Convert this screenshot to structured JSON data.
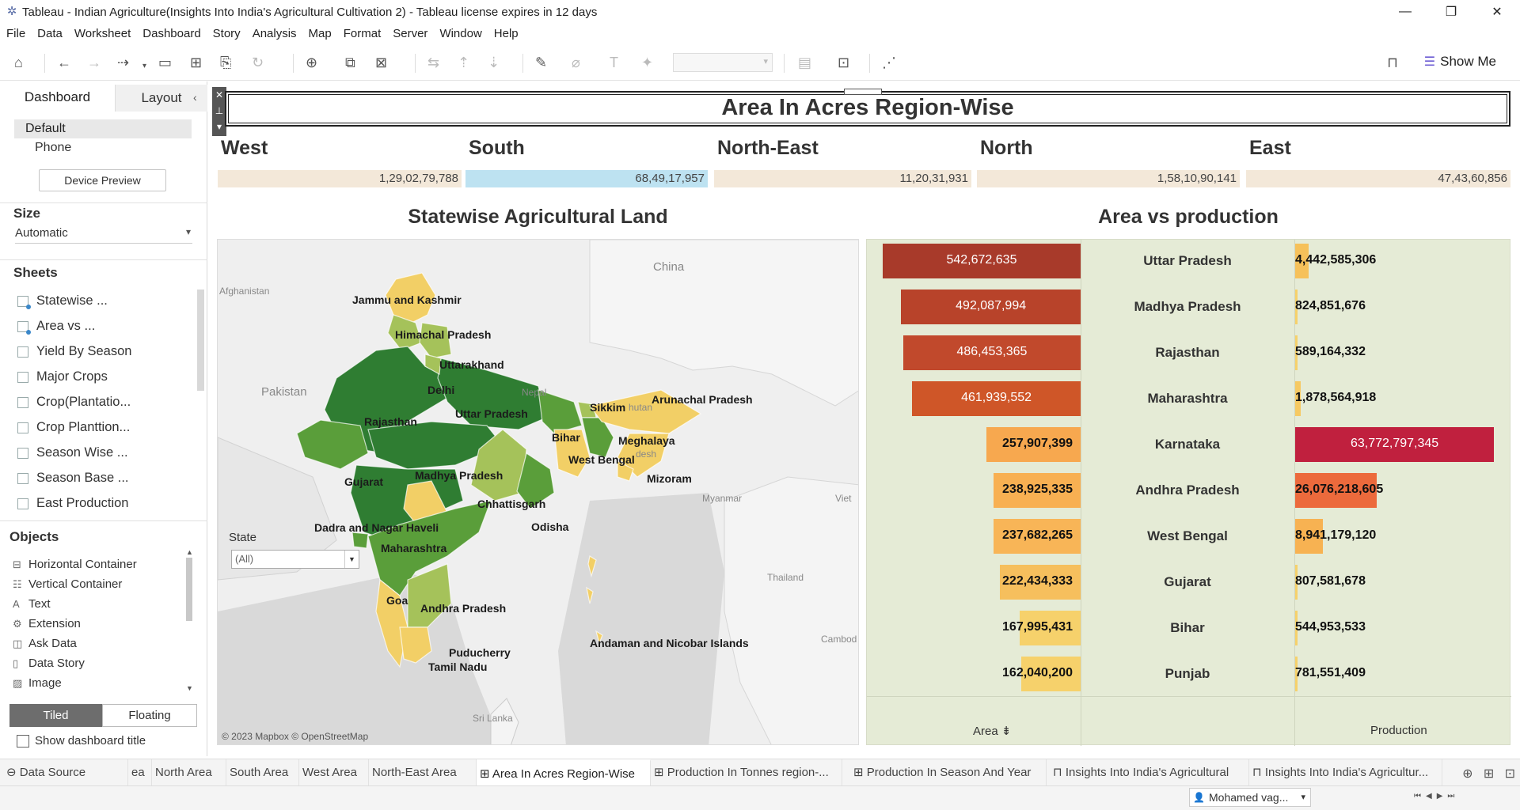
{
  "window": {
    "title": "Tableau - Indian Agriculture(Insights Into India's Agricultural Cultivation 2) - Tableau license expires in 12 days"
  },
  "menu": [
    "File",
    "Data",
    "Worksheet",
    "Dashboard",
    "Story",
    "Analysis",
    "Map",
    "Format",
    "Server",
    "Window",
    "Help"
  ],
  "toolbar": {
    "show_me": "Show Me"
  },
  "left_pane": {
    "tab_dashboard": "Dashboard",
    "tab_layout": "Layout",
    "device_default": "Default",
    "device_phone": "Phone",
    "device_preview": "Device Preview",
    "size_heading": "Size",
    "size_value": "Automatic",
    "sheets_heading": "Sheets",
    "sheets": [
      "Statewise ...",
      "Area vs ...",
      "Yield By Season",
      "Major Crops",
      "Crop(Plantatio...",
      "Crop Planttion...",
      "Season Wise ...",
      "Season Base ...",
      "East Production"
    ],
    "objects_heading": "Objects",
    "objects": [
      "Horizontal Container",
      "Vertical Container",
      "Text",
      "Extension",
      "Ask Data",
      "Data Story",
      "Image"
    ],
    "tiled": "Tiled",
    "floating": "Floating",
    "show_title": "Show dashboard title"
  },
  "dashboard": {
    "title": "Area In Acres Region-Wise",
    "regions": [
      {
        "name": "West",
        "value": "1,29,02,79,788"
      },
      {
        "name": "South",
        "value": "68,49,17,957"
      },
      {
        "name": "North-East",
        "value": "11,20,31,931"
      },
      {
        "name": "North",
        "value": "1,58,10,90,141"
      },
      {
        "name": "East",
        "value": "47,43,60,856"
      }
    ],
    "map_title": "Statewise Agricultural Land",
    "chart_title": "Area vs production",
    "state_filter_label": "State",
    "state_filter_value": "(All)",
    "map_attribution": "© 2023 Mapbox © OpenStreetMap",
    "map_labels": {
      "jk": "Jammu and Kashmir",
      "hp": "Himachal Pradesh",
      "uk": "Uttarakhand",
      "dl": "Delhi",
      "rj": "Rajasthan",
      "up": "Uttar Pradesh",
      "bh": "Bihar",
      "sk": "Sikkim",
      "ar": "Arunachal Pradesh",
      "ml": "Meghalaya",
      "wb": "West Bengal",
      "mz": "Mizoram",
      "gj": "Gujarat",
      "mp": "Madhya Pradesh",
      "cg": "Chhattisgarh",
      "od": "Odisha",
      "dn": "Dadra and Nagar Haveli",
      "mh": "Maharashtra",
      "ga": "Goa",
      "ap": "Andhra Pradesh",
      "py": "Puducherry",
      "tn": "Tamil Nadu",
      "an": "Andaman and Nicobar Islands",
      "china": "China",
      "afg": "Afghanistan",
      "pak": "Pakistan",
      "nepal": "Nepal",
      "myanmar": "Myanmar",
      "thailand": "Thailand",
      "srilanka": "Sri Lanka",
      "viet": "Viet",
      "camb": "Cambod",
      "bhutan": "hutan",
      "bangla": "desh"
    }
  },
  "chart_data": {
    "type": "bar",
    "title": "Area vs production",
    "categories": [
      "Uttar Pradesh",
      "Madhya Pradesh",
      "Rajasthan",
      "Maharashtra",
      "Karnataka",
      "Andhra Pradesh",
      "West Bengal",
      "Gujarat",
      "Bihar",
      "Punjab"
    ],
    "series": [
      {
        "name": "Area",
        "values": [
          542672635,
          492087994,
          486453365,
          461939552,
          257907399,
          238925335,
          237682265,
          222434333,
          167995431,
          162040200
        ],
        "labels": [
          "542,672,635",
          "492,087,994",
          "486,453,365",
          "461,939,552",
          "257,907,399",
          "238,925,335",
          "237,682,265",
          "222,434,333",
          "167,995,431",
          "162,040,200"
        ]
      },
      {
        "name": "Production",
        "values": [
          4442585306,
          824851676,
          589164332,
          1878564918,
          63772797345,
          26076218605,
          8941179120,
          807581678,
          544953533,
          781551409
        ],
        "labels": [
          "4,442,585,306",
          "824,851,676",
          "589,164,332",
          "1,878,564,918",
          "63,772,797,345",
          "26,076,218,605",
          "8,941,179,120",
          "807,581,678",
          "544,953,533",
          "781,551,409"
        ]
      }
    ],
    "xlabel_area": "Area",
    "xlabel_production": "Production"
  },
  "colors": {
    "map_dark": "#2f7d32",
    "map_mid": "#5a9e3a",
    "map_light": "#a5c25a",
    "map_yellow": "#f2cf66",
    "area_scale": [
      "#a83a2a",
      "#b8432a",
      "#c1492c",
      "#cf5628",
      "#f7a84f",
      "#f8b052",
      "#f8b557",
      "#f6bf5d",
      "#f6d16b",
      "#f6d16b"
    ],
    "prod_scale": [
      "#f6c15a",
      "#f6d16b",
      "#f6d16b",
      "#f6c962",
      "#c0203e",
      "#ec6a3c",
      "#f7b252",
      "#f6d16b",
      "#f6d16b",
      "#f6d16b"
    ]
  },
  "bottom_tabs": [
    "Data Source",
    "ea",
    "North Area",
    "South Area",
    "West Area",
    "North-East Area",
    "Area In Acres Region-Wise",
    "Production In Tonnes region-...",
    "Production In Season And Year",
    "Insights Into India's Agricultural",
    "Insights Into India's Agricultur..."
  ],
  "status": {
    "user": "Mohamed vag..."
  }
}
